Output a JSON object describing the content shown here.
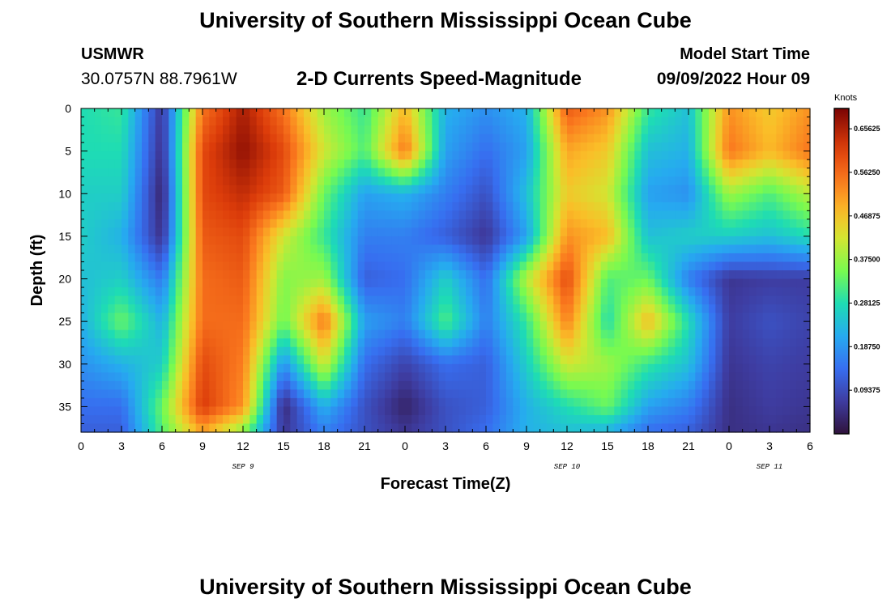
{
  "header": {
    "title": "University of Southern Mississippi Ocean Cube",
    "station": "USMWR",
    "coordinates": "30.0757N  88.7961W",
    "subtitle": "2-D Currents Speed-Magnitude",
    "model_start_label": "Model Start Time",
    "model_start_value": "09/09/2022 Hour 09"
  },
  "footer": {
    "title": "University of Southern Mississippi Ocean Cube"
  },
  "chart_data": {
    "type": "heatmap",
    "title": "2-D Currents Speed-Magnitude",
    "xlabel": "Forecast Time(Z)",
    "ylabel": "Depth (ft)",
    "xlim": [
      0,
      54
    ],
    "ylim": [
      0,
      38
    ],
    "x_ticks": [
      {
        "v": 0,
        "label": "0"
      },
      {
        "v": 3,
        "label": "3"
      },
      {
        "v": 6,
        "label": "6"
      },
      {
        "v": 9,
        "label": "9"
      },
      {
        "v": 12,
        "label": "12"
      },
      {
        "v": 15,
        "label": "15"
      },
      {
        "v": 18,
        "label": "18"
      },
      {
        "v": 21,
        "label": "21"
      },
      {
        "v": 24,
        "label": "0"
      },
      {
        "v": 27,
        "label": "3"
      },
      {
        "v": 30,
        "label": "6"
      },
      {
        "v": 33,
        "label": "9"
      },
      {
        "v": 36,
        "label": "12"
      },
      {
        "v": 39,
        "label": "15"
      },
      {
        "v": 42,
        "label": "18"
      },
      {
        "v": 45,
        "label": "21"
      },
      {
        "v": 48,
        "label": "0"
      },
      {
        "v": 51,
        "label": "3"
      },
      {
        "v": 54,
        "label": "6"
      }
    ],
    "y_ticks": [
      {
        "v": 0,
        "label": "0"
      },
      {
        "v": 5,
        "label": "5"
      },
      {
        "v": 10,
        "label": "10"
      },
      {
        "v": 15,
        "label": "15"
      },
      {
        "v": 20,
        "label": "20"
      },
      {
        "v": 25,
        "label": "25"
      },
      {
        "v": 30,
        "label": "30"
      },
      {
        "v": 35,
        "label": "35"
      }
    ],
    "day_labels": [
      {
        "v": 12,
        "label": "SEP 9"
      },
      {
        "v": 36,
        "label": "SEP 10"
      },
      {
        "v": 51,
        "label": "SEP 11"
      }
    ],
    "colorbar": {
      "title": "Knots",
      "range": [
        0,
        0.7
      ],
      "ticks": [
        {
          "v": 0.65625,
          "label": "0.65625"
        },
        {
          "v": 0.5625,
          "label": "0.56250"
        },
        {
          "v": 0.46875,
          "label": "0.46875"
        },
        {
          "v": 0.375,
          "label": "0.37500"
        },
        {
          "v": 0.28125,
          "label": "0.28125"
        },
        {
          "v": 0.1875,
          "label": "0.18750"
        },
        {
          "v": 0.09375,
          "label": "0.09375"
        }
      ]
    },
    "speed_knots_grid": {
      "times": [
        0,
        3,
        6,
        9,
        12,
        15,
        18,
        21,
        24,
        27,
        30,
        33,
        36,
        39,
        42,
        45,
        48,
        51,
        54
      ],
      "depths": [
        0,
        5,
        10,
        15,
        20,
        25,
        30,
        35,
        38
      ],
      "values": [
        [
          0.28,
          0.3,
          0.06,
          0.55,
          0.66,
          0.55,
          0.38,
          0.3,
          0.48,
          0.22,
          0.18,
          0.22,
          0.58,
          0.52,
          0.3,
          0.24,
          0.52,
          0.46,
          0.52
        ],
        [
          0.28,
          0.28,
          0.05,
          0.6,
          0.68,
          0.6,
          0.42,
          0.32,
          0.55,
          0.2,
          0.14,
          0.2,
          0.5,
          0.46,
          0.24,
          0.22,
          0.55,
          0.48,
          0.55
        ],
        [
          0.26,
          0.26,
          0.03,
          0.6,
          0.64,
          0.58,
          0.34,
          0.2,
          0.22,
          0.16,
          0.1,
          0.24,
          0.46,
          0.42,
          0.2,
          0.18,
          0.38,
          0.32,
          0.4
        ],
        [
          0.26,
          0.22,
          0.05,
          0.58,
          0.6,
          0.42,
          0.3,
          0.16,
          0.16,
          0.12,
          0.06,
          0.2,
          0.52,
          0.48,
          0.24,
          0.26,
          0.26,
          0.24,
          0.28
        ],
        [
          0.24,
          0.26,
          0.15,
          0.56,
          0.58,
          0.36,
          0.38,
          0.12,
          0.14,
          0.26,
          0.14,
          0.4,
          0.6,
          0.32,
          0.34,
          0.16,
          0.06,
          0.07,
          0.07
        ],
        [
          0.22,
          0.34,
          0.22,
          0.56,
          0.56,
          0.34,
          0.55,
          0.2,
          0.16,
          0.32,
          0.16,
          0.3,
          0.54,
          0.28,
          0.48,
          0.28,
          0.07,
          0.1,
          0.08
        ],
        [
          0.18,
          0.22,
          0.26,
          0.6,
          0.54,
          0.18,
          0.42,
          0.14,
          0.08,
          0.14,
          0.12,
          0.26,
          0.42,
          0.38,
          0.3,
          0.24,
          0.06,
          0.08,
          0.07
        ],
        [
          0.14,
          0.14,
          0.34,
          0.62,
          0.52,
          0.04,
          0.22,
          0.1,
          0.03,
          0.1,
          0.12,
          0.22,
          0.28,
          0.34,
          0.2,
          0.16,
          0.05,
          0.07,
          0.06
        ],
        [
          0.12,
          0.12,
          0.32,
          0.5,
          0.36,
          0.06,
          0.16,
          0.1,
          0.06,
          0.1,
          0.14,
          0.22,
          0.24,
          0.22,
          0.14,
          0.12,
          0.05,
          0.06,
          0.05
        ]
      ]
    }
  }
}
